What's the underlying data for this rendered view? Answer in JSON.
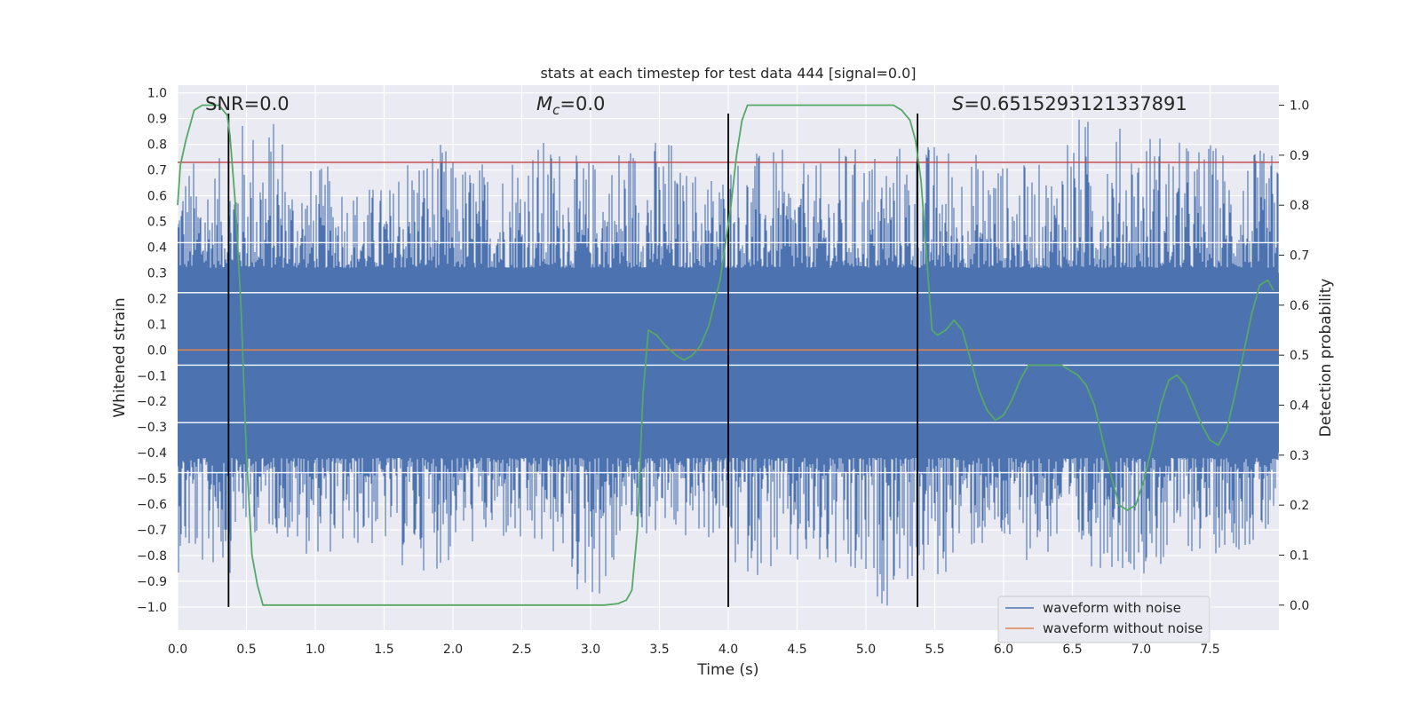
{
  "chart_data": {
    "type": "line",
    "title": "stats at each timestep for test data 444 [signal=0.0]",
    "xlabel": "Time (s)",
    "ylabel": "Whitened strain",
    "y2label": "Detection probability",
    "xlim": [
      0.0,
      8.0
    ],
    "ylim": [
      -1.09,
      1.03
    ],
    "y2lim": [
      -0.05,
      1.04
    ],
    "xticks": [
      "0.0",
      "0.5",
      "1.0",
      "1.5",
      "2.0",
      "2.5",
      "3.0",
      "3.5",
      "4.0",
      "4.5",
      "5.0",
      "5.5",
      "6.0",
      "6.5",
      "7.0",
      "7.5"
    ],
    "yticks": [
      "1.0",
      "0.9",
      "0.8",
      "0.7",
      "0.6",
      "0.5",
      "0.4",
      "0.3",
      "0.2",
      "0.1",
      "0.0",
      "−0.1",
      "−0.2",
      "−0.3",
      "−0.4",
      "−0.5",
      "−0.6",
      "−0.7",
      "−0.8",
      "−0.9",
      "−1.0"
    ],
    "y2ticks": [
      "1.0",
      "0.9",
      "0.8",
      "0.7",
      "0.6",
      "0.5",
      "0.4",
      "0.3",
      "0.2",
      "0.1",
      "0.0"
    ],
    "grid": true,
    "legend_position": "lower right",
    "annotations": {
      "snr": "SNR=0.0",
      "mc_symbol": "M",
      "mc_sub": "c",
      "mc_value": "=0.0",
      "s_symbol": "S",
      "s_value": "=0.6515293121337891"
    },
    "series": [
      {
        "name": "waveform with noise",
        "color": "#4c72b0",
        "description_values": "dense noise roughly within -1.0 to 0.92",
        "envelope_high": [
          0.75,
          0.91,
          0.72,
          0.65,
          0.81,
          0.75,
          0.83,
          0.76,
          0.84,
          0.72,
          0.78,
          0.73,
          0.8,
          0.82,
          0.78,
          0.73,
          0.92,
          0.88,
          0.82,
          0.78
        ],
        "envelope_low": [
          -0.87,
          -0.72,
          -0.8,
          -0.78,
          -0.86,
          -0.77,
          -0.82,
          -0.98,
          -0.74,
          -0.75,
          -0.88,
          -0.91,
          -1.0,
          -0.93,
          -0.8,
          -0.82,
          -0.85,
          -0.87,
          -0.8,
          -0.78
        ]
      },
      {
        "name": "waveform without noise",
        "color": "#dd8452",
        "x": [
          0.0,
          8.0
        ],
        "y": [
          0.0,
          0.0
        ]
      },
      {
        "name": "",
        "axis": "right",
        "color": "#55a868",
        "x": [
          0.0,
          0.02,
          0.06,
          0.12,
          0.18,
          0.24,
          0.3,
          0.36,
          0.38,
          0.42,
          0.46,
          0.5,
          0.54,
          0.58,
          0.62,
          0.7,
          0.8,
          1.0,
          1.5,
          2.0,
          2.5,
          3.0,
          3.1,
          3.2,
          3.26,
          3.3,
          3.34,
          3.38,
          3.42,
          3.48,
          3.54,
          3.62,
          3.68,
          3.74,
          3.8,
          3.86,
          3.94,
          4.02,
          4.06,
          4.1,
          4.14,
          4.2,
          4.3,
          4.5,
          5.0,
          5.2,
          5.26,
          5.32,
          5.36,
          5.4,
          5.44,
          5.48,
          5.52,
          5.58,
          5.64,
          5.7,
          5.76,
          5.82,
          5.88,
          5.94,
          6.0,
          6.06,
          6.12,
          6.18,
          6.24,
          6.3,
          6.36,
          6.42,
          6.48,
          6.54,
          6.6,
          6.66,
          6.72,
          6.78,
          6.84,
          6.9,
          6.96,
          7.02,
          7.08,
          7.14,
          7.2,
          7.26,
          7.32,
          7.38,
          7.44,
          7.5,
          7.56,
          7.62,
          7.68,
          7.74,
          7.8,
          7.86,
          7.92,
          7.96
        ],
        "y": [
          0.8,
          0.88,
          0.93,
          0.99,
          1.0,
          1.0,
          1.0,
          0.98,
          0.94,
          0.8,
          0.6,
          0.3,
          0.1,
          0.04,
          0.0,
          0.0,
          0.0,
          0.0,
          0.0,
          0.0,
          0.0,
          0.0,
          0.0,
          0.003,
          0.01,
          0.03,
          0.15,
          0.42,
          0.55,
          0.54,
          0.52,
          0.5,
          0.49,
          0.5,
          0.52,
          0.56,
          0.65,
          0.8,
          0.9,
          0.97,
          1.0,
          1.0,
          1.0,
          1.0,
          1.0,
          1.0,
          0.99,
          0.97,
          0.93,
          0.85,
          0.7,
          0.55,
          0.54,
          0.55,
          0.57,
          0.55,
          0.49,
          0.43,
          0.39,
          0.37,
          0.38,
          0.41,
          0.45,
          0.48,
          0.48,
          0.48,
          0.48,
          0.48,
          0.47,
          0.46,
          0.44,
          0.4,
          0.33,
          0.26,
          0.2,
          0.19,
          0.2,
          0.25,
          0.32,
          0.4,
          0.45,
          0.46,
          0.44,
          0.4,
          0.36,
          0.33,
          0.32,
          0.35,
          0.42,
          0.5,
          0.58,
          0.64,
          0.65,
          0.63
        ]
      }
    ],
    "hlines": [
      {
        "value": 0.73,
        "color": "#c44e52"
      }
    ],
    "vlines": [
      {
        "value": 0.37,
        "color": "#000000"
      },
      {
        "value": 4.0,
        "color": "#000000"
      },
      {
        "value": 5.375,
        "color": "#000000"
      }
    ],
    "white_hlines_y2": [
      0.725,
      0.625,
      0.48,
      0.365,
      0.265
    ]
  }
}
